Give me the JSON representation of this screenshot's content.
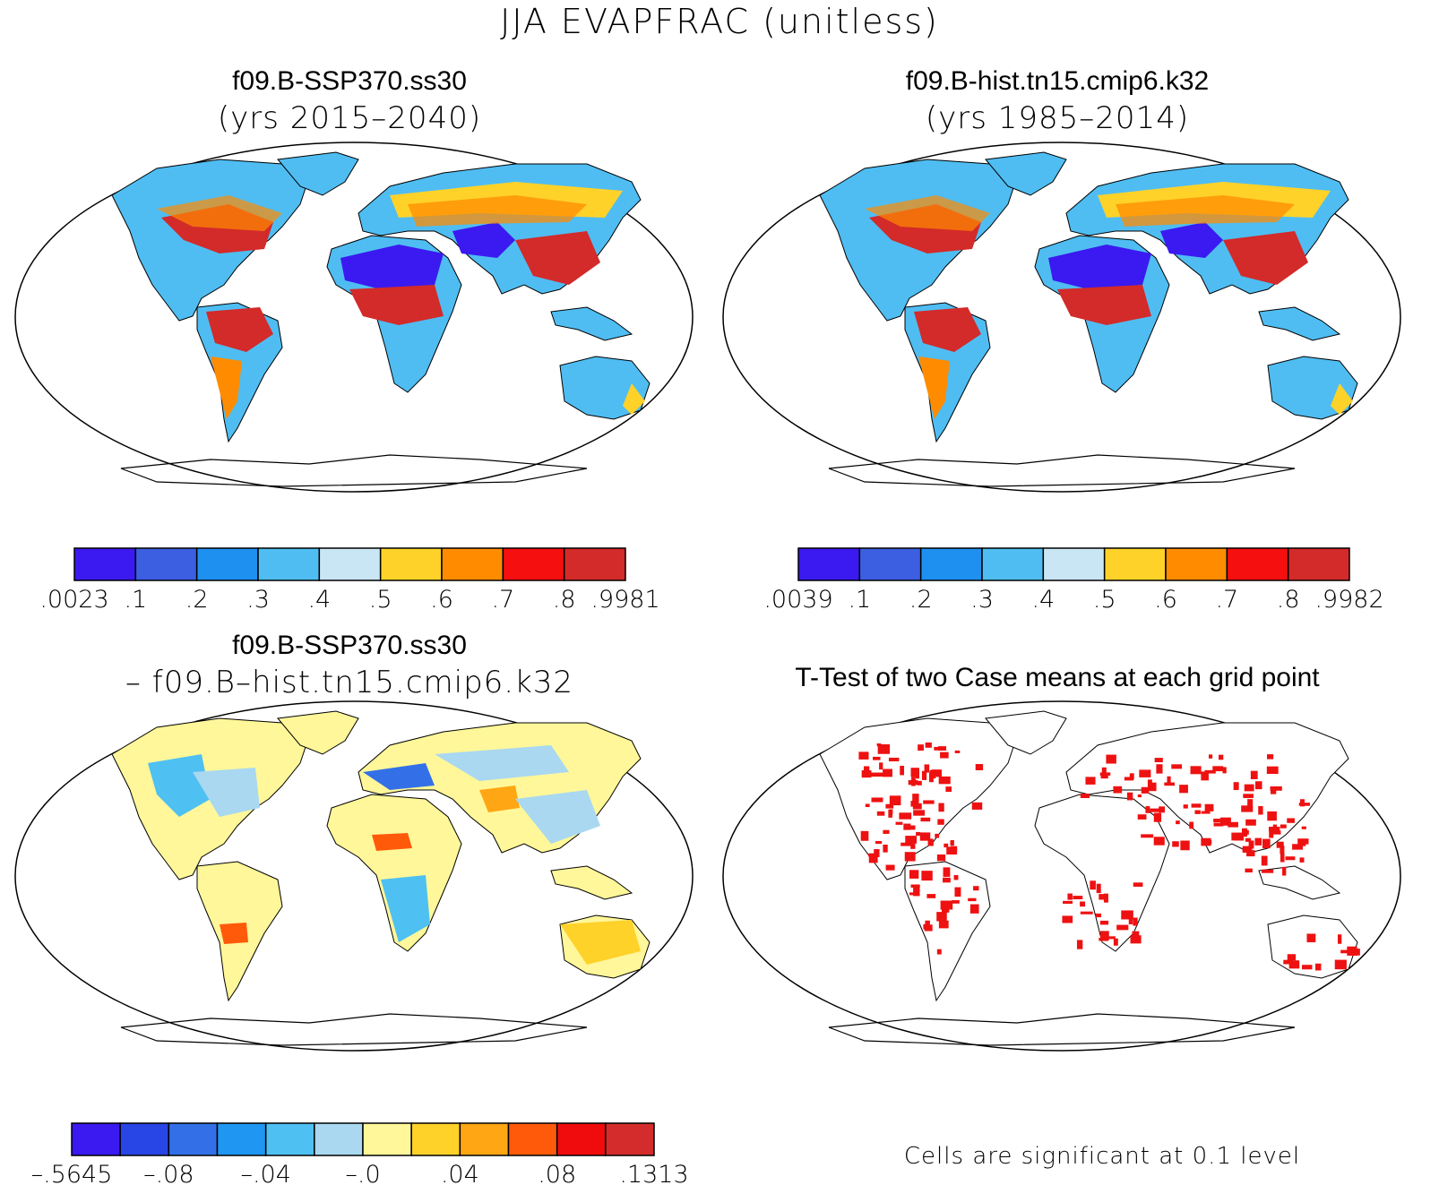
{
  "title": "JJA EVAPFRAC (unitless)",
  "panels": [
    {
      "id": "case1",
      "title_line1": "f09.B-SSP370.ss30",
      "title_line2": "(yrs 2015–2040)",
      "colorbar": {
        "labels": [
          ".0023",
          ".1",
          ".2",
          ".3",
          ".4",
          ".5",
          ".6",
          ".7",
          ".8",
          ".9981"
        ],
        "colors": [
          "#3a1af0",
          "#3b5fe0",
          "#1e90f0",
          "#4fbdf2",
          "#c9e6f5",
          "#ffd22a",
          "#ff8c00",
          "#f50f0f",
          "#d32a2a"
        ]
      }
    },
    {
      "id": "case2",
      "title_line1": "f09.B-hist.tn15.cmip6.k32",
      "title_line2": "(yrs 1985–2014)",
      "colorbar": {
        "labels": [
          ".0039",
          ".1",
          ".2",
          ".3",
          ".4",
          ".5",
          ".6",
          ".7",
          ".8",
          ".9982"
        ],
        "colors": [
          "#3a1af0",
          "#3b5fe0",
          "#1e90f0",
          "#4fbdf2",
          "#c9e6f5",
          "#ffd22a",
          "#ff8c00",
          "#f50f0f",
          "#d32a2a"
        ]
      }
    },
    {
      "id": "difference",
      "title_line1": "f09.B-SSP370.ss30",
      "title_line2": "– f09.B–hist.tn15.cmip6.k32",
      "colorbar": {
        "labels": [
          "–.5645",
          "–.08",
          "–.04",
          "–.0",
          ".04",
          ".08",
          ".1313"
        ],
        "colors": [
          "#3a1af0",
          "#2845e6",
          "#3370e8",
          "#1f97f2",
          "#4fc0f2",
          "#a9d8f0",
          "#fff79a",
          "#ffd22a",
          "#ffa614",
          "#ff5a0a",
          "#f00c0c",
          "#d42c2c"
        ]
      }
    },
    {
      "id": "ttest",
      "title_line1": "T-Test of two Case means at each grid point",
      "footnote": "Cells are significant at 0.1 level",
      "sig_color": "#ee1111"
    }
  ]
}
